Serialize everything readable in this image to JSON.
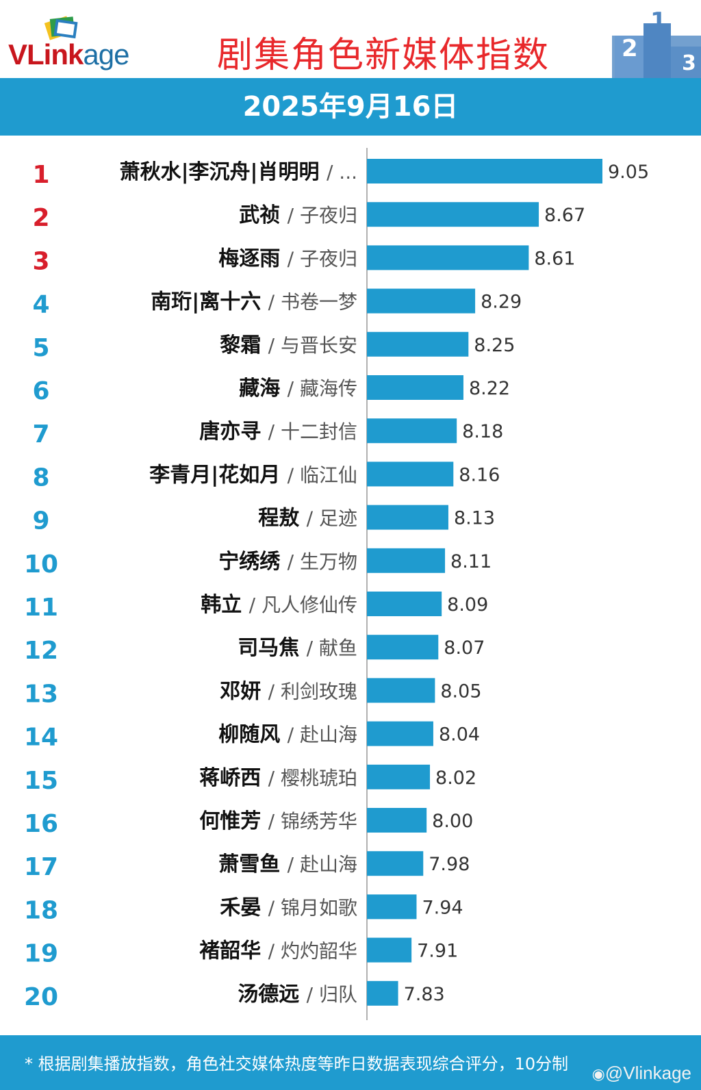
{
  "header": {
    "logo_text_red": "VLink",
    "logo_text_dark": "age",
    "title": "剧集角色新媒体指数",
    "podium_labels": [
      "2",
      "1",
      "3"
    ]
  },
  "date": "2025年9月16日",
  "colors": {
    "bar": "#1f9bcf",
    "rank_top3": "#d81e2b",
    "rank_other": "#1f9bcf",
    "header_bar": "#1f9bcf",
    "title_red": "#e8282b"
  },
  "chart_data": {
    "type": "bar",
    "orientation": "horizontal",
    "title": "剧集角色新媒体指数",
    "xlim": [
      0,
      10
    ],
    "value_format": "2-decimals",
    "rows": [
      {
        "rank": "1",
        "character": "萧秋水|李沉舟|肖明明",
        "drama": "/ ...",
        "value": 9.05
      },
      {
        "rank": "2",
        "character": "武祯",
        "drama": "/ 子夜归",
        "value": 8.67
      },
      {
        "rank": "3",
        "character": "梅逐雨",
        "drama": "/ 子夜归",
        "value": 8.61
      },
      {
        "rank": "4",
        "character": "南珩|离十六",
        "drama": "/ 书卷一梦",
        "value": 8.29
      },
      {
        "rank": "5",
        "character": "黎霜",
        "drama": "/ 与晋长安",
        "value": 8.25
      },
      {
        "rank": "6",
        "character": "藏海",
        "drama": "/ 藏海传",
        "value": 8.22
      },
      {
        "rank": "7",
        "character": "唐亦寻",
        "drama": "/ 十二封信",
        "value": 8.18
      },
      {
        "rank": "8",
        "character": "李青月|花如月",
        "drama": "/ 临江仙",
        "value": 8.16
      },
      {
        "rank": "9",
        "character": "程敖",
        "drama": "/ 足迹",
        "value": 8.13
      },
      {
        "rank": "10",
        "character": "宁绣绣",
        "drama": "/ 生万物",
        "value": 8.11
      },
      {
        "rank": "11",
        "character": "韩立",
        "drama": "/ 凡人修仙传",
        "value": 8.09
      },
      {
        "rank": "12",
        "character": "司马焦",
        "drama": "/ 献鱼",
        "value": 8.07
      },
      {
        "rank": "13",
        "character": "邓妍",
        "drama": "/ 利剑玫瑰",
        "value": 8.05
      },
      {
        "rank": "14",
        "character": "柳随风",
        "drama": "/ 赴山海",
        "value": 8.04
      },
      {
        "rank": "15",
        "character": "蒋峤西",
        "drama": "/ 樱桃琥珀",
        "value": 8.02
      },
      {
        "rank": "16",
        "character": "何惟芳",
        "drama": "/ 锦绣芳华",
        "value": 8.0
      },
      {
        "rank": "17",
        "character": "萧雪鱼",
        "drama": "/ 赴山海",
        "value": 7.98
      },
      {
        "rank": "18",
        "character": "禾晏",
        "drama": "/ 锦月如歌",
        "value": 7.94
      },
      {
        "rank": "19",
        "character": "褚韶华",
        "drama": "/ 灼灼韶华",
        "value": 7.91
      },
      {
        "rank": "20",
        "character": "汤德远",
        "drama": "/ 归队",
        "value": 7.83
      }
    ]
  },
  "footer": {
    "note": "* 根据剧集播放指数，角色社交媒体热度等昨日数据表现综合评分，10分制",
    "watermark": "@Vlinkage"
  }
}
